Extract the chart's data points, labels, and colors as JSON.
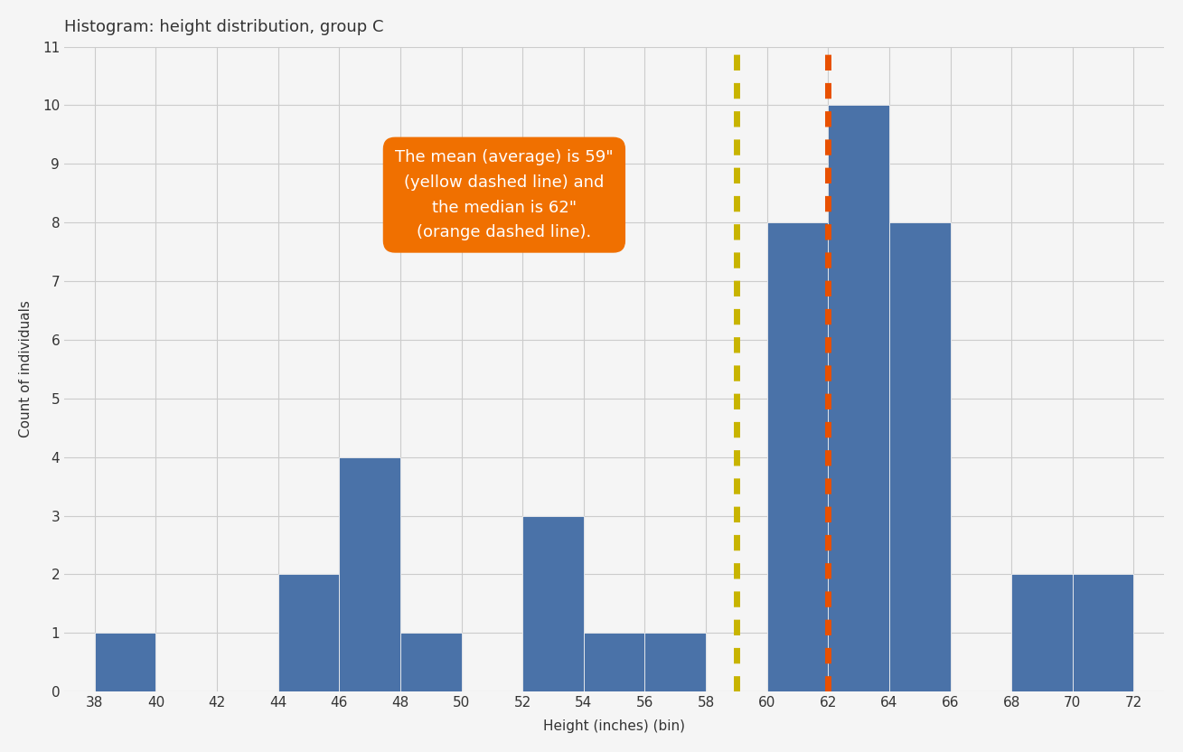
{
  "title": "Histogram: height distribution, group C",
  "xlabel": "Height (inches) (bin)",
  "ylabel": "Count of individuals",
  "bar_color": "#4a72a8",
  "bar_edgecolor": "#f0f0f0",
  "bin_edges": [
    38,
    40,
    42,
    44,
    46,
    48,
    50,
    52,
    54,
    56,
    58,
    60,
    62,
    64,
    66,
    68,
    70,
    72
  ],
  "counts": [
    1,
    0,
    0,
    2,
    4,
    1,
    0,
    3,
    1,
    1,
    0,
    8,
    10,
    8,
    0,
    2,
    2
  ],
  "mean": 59,
  "median": 62,
  "mean_color": "#c8b400",
  "median_color": "#e85000",
  "ylim": [
    0,
    11
  ],
  "yticks": [
    0,
    1,
    2,
    3,
    4,
    5,
    6,
    7,
    8,
    9,
    10,
    11
  ],
  "xlim": [
    37,
    73
  ],
  "xticks": [
    38,
    40,
    42,
    44,
    46,
    48,
    50,
    52,
    54,
    56,
    58,
    60,
    62,
    64,
    66,
    68,
    70,
    72
  ],
  "annotation_text": "The mean (average) is 59\"\n(yellow dashed line) and\nthe median is 62\"\n(orange dashed line).",
  "background_color": "#f5f5f5",
  "grid_color": "#cccccc",
  "title_fontsize": 13,
  "axis_label_fontsize": 11,
  "tick_fontsize": 11,
  "annotation_facecolor": "#f07000",
  "annotation_fontsize": 13
}
